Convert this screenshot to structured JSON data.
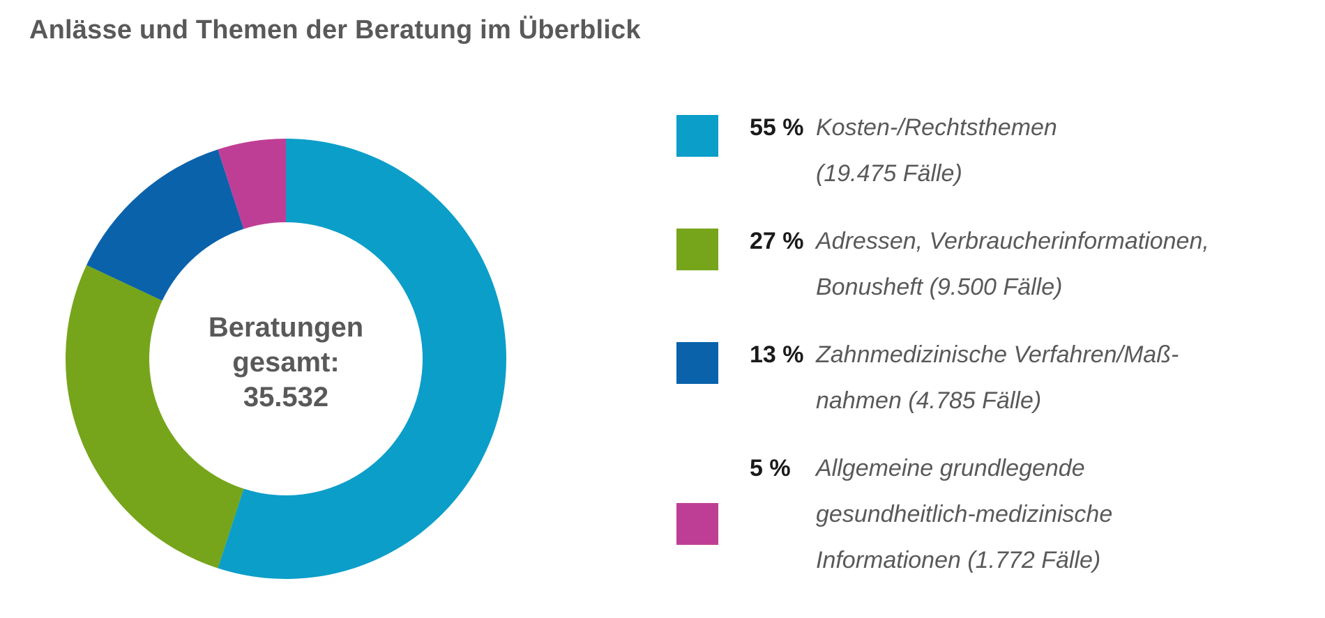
{
  "title": "Anlässe und Themen der Beratung im Überblick",
  "center_label": [
    "Beratungen",
    "gesamt:",
    "35.532"
  ],
  "chart_data": {
    "type": "pie",
    "variant": "donut",
    "title": "Anlässe und Themen der Beratung im Überblick",
    "total_label": "Beratungen gesamt: 35.532",
    "total": 35532,
    "slices": [
      {
        "percent": 55,
        "value": 19475,
        "label": "Kosten-/Rechtsthemen",
        "detail": "(19.475 Fälle)",
        "color": "#0b9ec9"
      },
      {
        "percent": 27,
        "value": 9500,
        "label": "Adressen, Verbraucherinformationen,",
        "detail": "Bonusheft (9.500 Fälle)",
        "color": "#76a51b"
      },
      {
        "percent": 13,
        "value": 4785,
        "label": "Zahnmedizinische Verfahren/Maß-",
        "detail": "nahmen (4.785 Fälle)",
        "color": "#0a62ab"
      },
      {
        "percent": 5,
        "value": 1772,
        "label": "Allgemeine grundlegende",
        "label2": "gesundheitlich-medizinische",
        "detail": "Informationen (1.772 Fälle)",
        "color": "#bf3e95"
      }
    ]
  },
  "legend": [
    {
      "pct": "55 %",
      "lines": [
        "Kosten-/Rechtsthemen",
        "(19.475 Fälle)"
      ],
      "color": "#0b9ec9"
    },
    {
      "pct": "27 %",
      "lines": [
        "Adressen, Verbraucherinformationen,",
        "Bonusheft (9.500 Fälle)"
      ],
      "color": "#76a51b"
    },
    {
      "pct": "13 %",
      "lines": [
        "Zahnmedizinische Verfahren/Maß-",
        "nahmen (4.785 Fälle)"
      ],
      "color": "#0a62ab"
    },
    {
      "pct": "5 %",
      "lines": [
        "Allgemeine grundlegende",
        "gesundheitlich-medizinische",
        "Informationen (1.772 Fälle)"
      ],
      "color": "#bf3e95"
    }
  ]
}
